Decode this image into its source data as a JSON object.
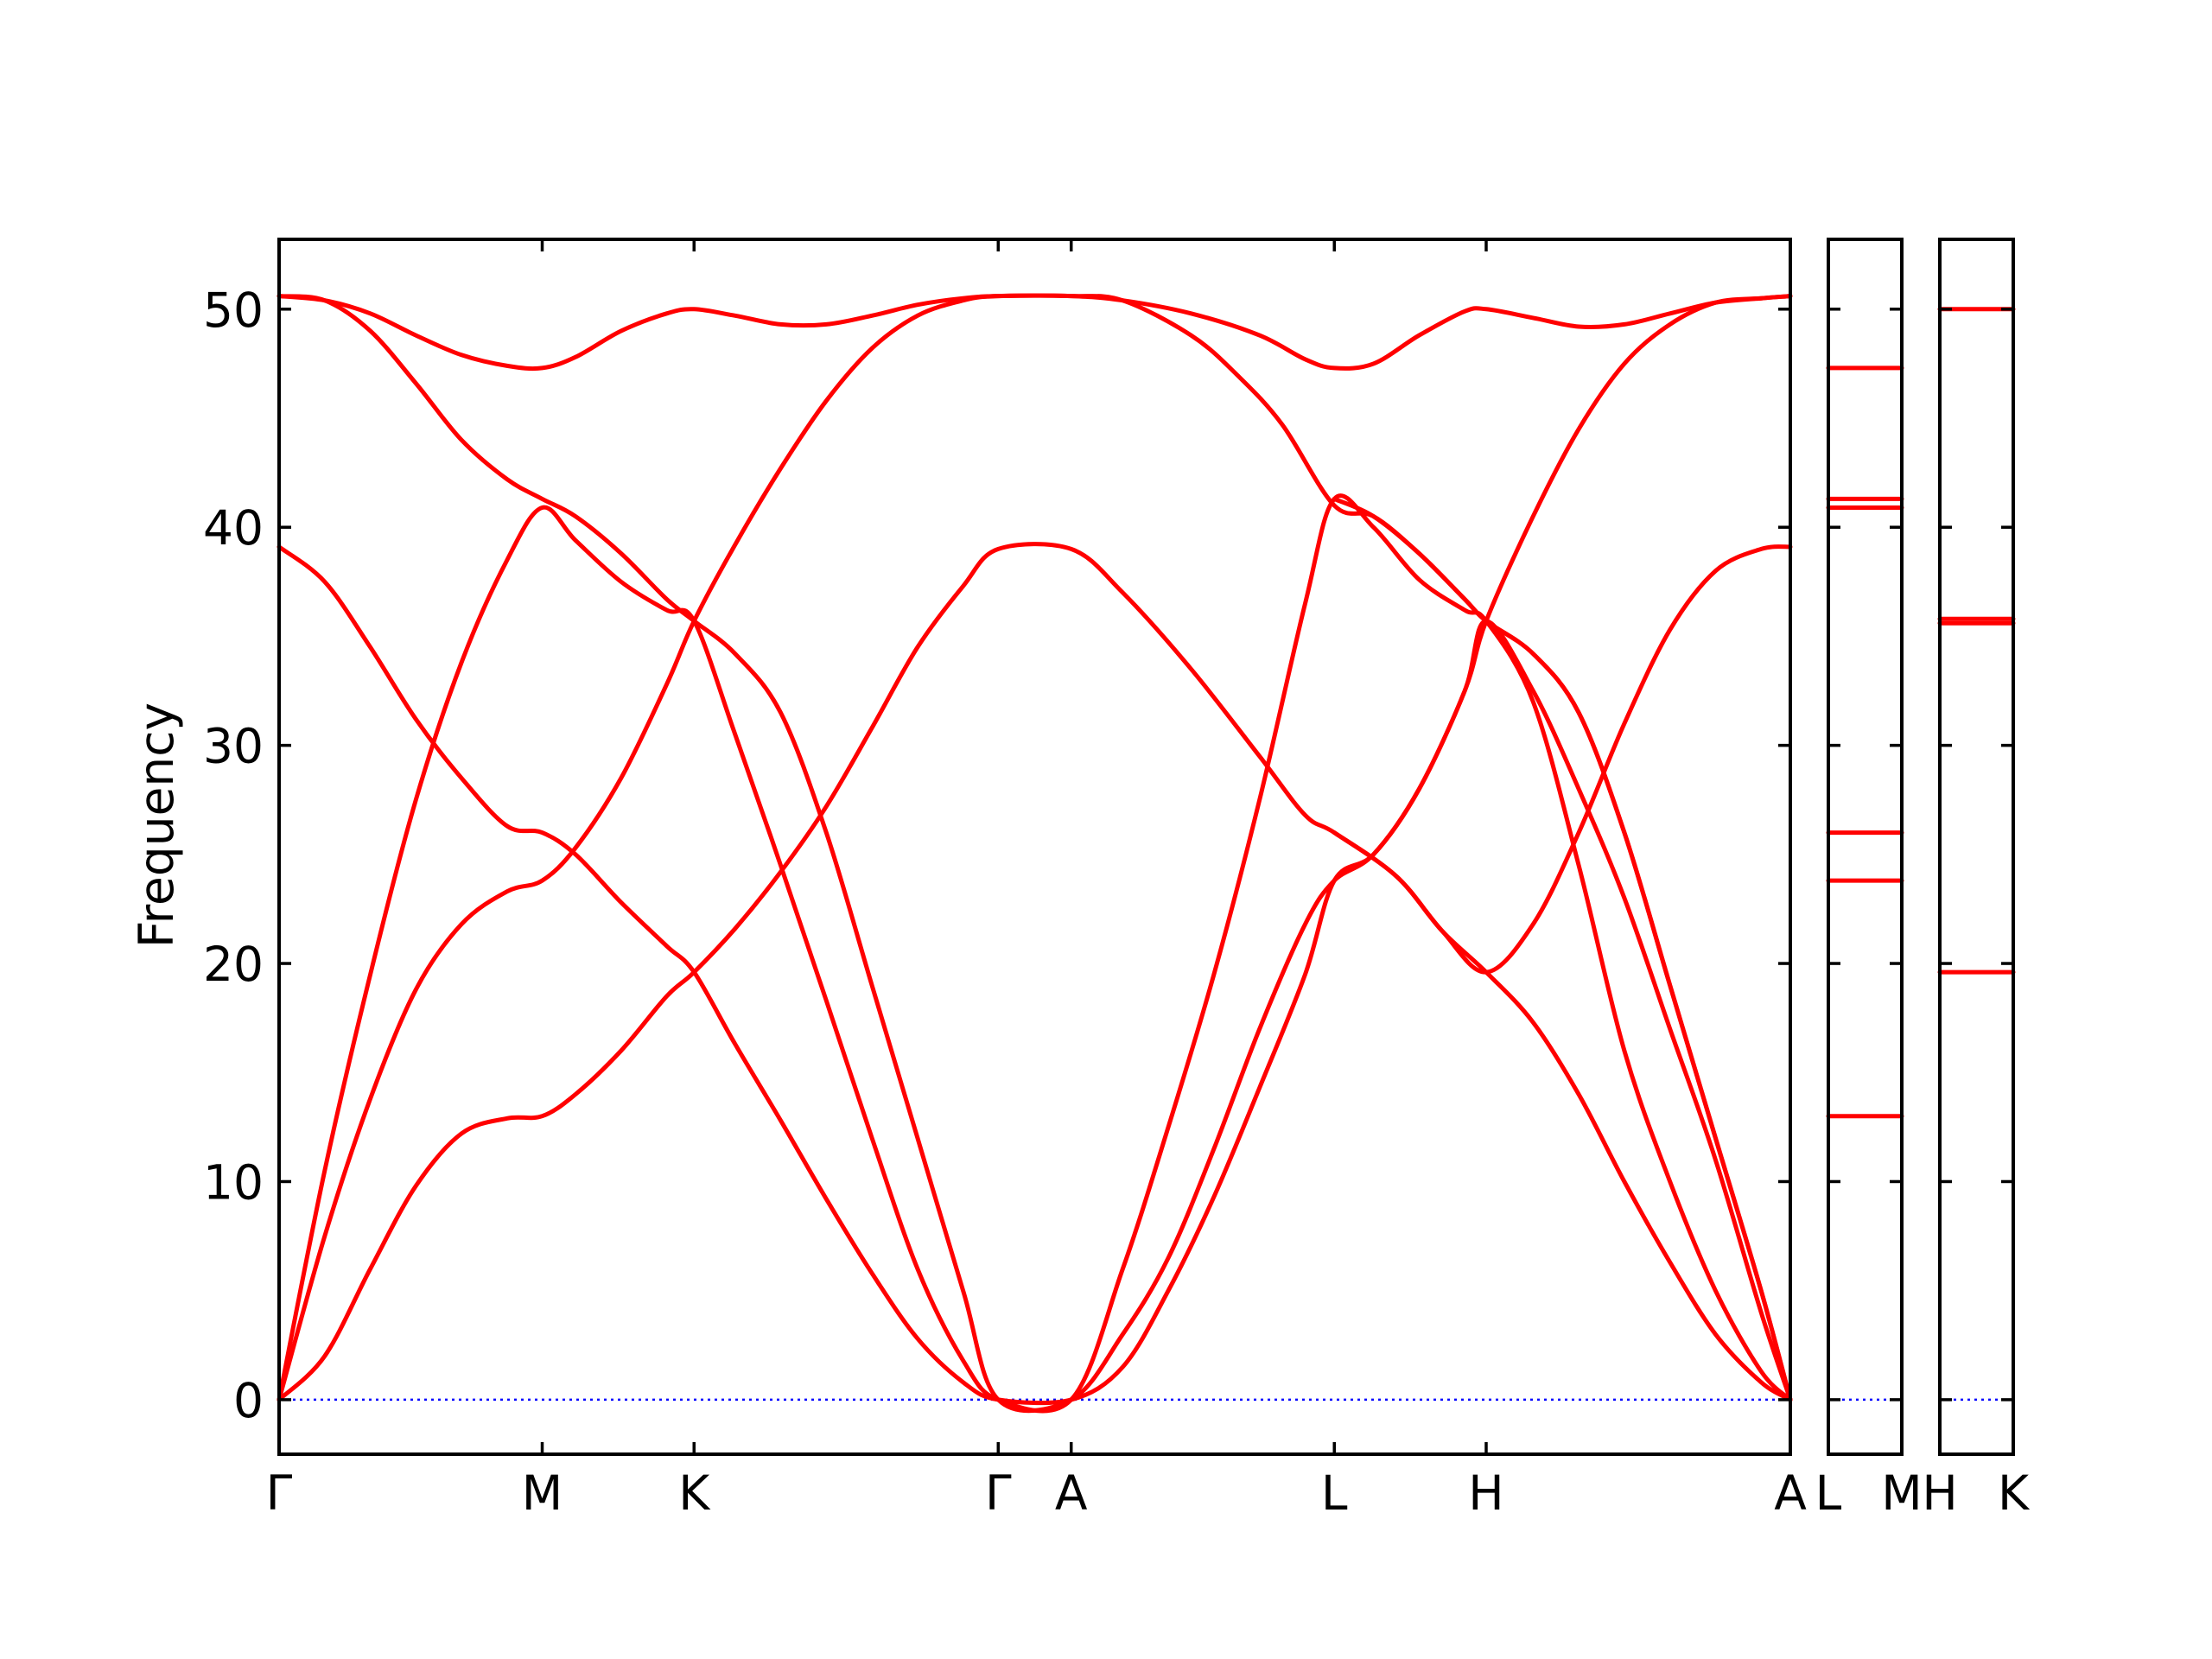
{
  "chart_data": {
    "type": "line",
    "ylabel": "Frequency",
    "ylim": [
      -2.5,
      53.2
    ],
    "yticks": [
      0,
      10,
      20,
      30,
      40,
      50
    ],
    "colors": {
      "bands": "#ff0000",
      "zero_line": "#0000ff",
      "axes": "#000000"
    },
    "main_panel": {
      "path": [
        "Γ",
        "M",
        "K",
        "Γ",
        "A",
        "L",
        "H",
        "A"
      ],
      "xticks": [
        {
          "x": 0.0,
          "label": "Γ"
        },
        {
          "x": 0.577,
          "label": "M"
        },
        {
          "x": 0.91,
          "label": "K"
        },
        {
          "x": 1.577,
          "label": "Γ"
        },
        {
          "x": 1.737,
          "label": "A"
        },
        {
          "x": 2.314,
          "label": "L"
        },
        {
          "x": 2.647,
          "label": "H"
        },
        {
          "x": 3.314,
          "label": "A"
        }
      ],
      "xlim": [
        0,
        3.314
      ],
      "bands": [
        {
          "name": "",
          "points": [
            [
              0,
              0
            ],
            [
              0.1,
              2.0
            ],
            [
              0.2,
              6.0
            ],
            [
              0.3,
              9.8
            ],
            [
              0.4,
              12.2
            ],
            [
              0.5,
              12.9
            ],
            [
              0.577,
              13.0
            ],
            [
              0.65,
              14.0
            ],
            [
              0.75,
              16.0
            ],
            [
              0.85,
              18.5
            ],
            [
              0.91,
              19.6
            ],
            [
              1.0,
              21.6
            ],
            [
              1.1,
              24.2
            ],
            [
              1.2,
              27.2
            ],
            [
              1.3,
              30.8
            ],
            [
              1.4,
              34.5
            ],
            [
              1.5,
              37.3
            ],
            [
              1.577,
              39.0
            ],
            [
              1.737,
              39.0
            ],
            [
              1.85,
              37.0
            ],
            [
              2.0,
              33.5
            ],
            [
              2.15,
              29.5
            ],
            [
              2.25,
              26.8
            ],
            [
              2.314,
              26.0
            ],
            [
              2.45,
              24.0
            ],
            [
              2.55,
              21.5
            ],
            [
              2.647,
              19.6
            ],
            [
              2.75,
              17.3
            ],
            [
              2.85,
              14.0
            ],
            [
              2.95,
              10.0
            ],
            [
              3.05,
              6.3
            ],
            [
              3.15,
              3.0
            ],
            [
              3.25,
              0.8
            ],
            [
              3.314,
              0
            ]
          ]
        },
        {
          "name": "",
          "points": [
            [
              0,
              0
            ],
            [
              0.1,
              7.5
            ],
            [
              0.2,
              13.8
            ],
            [
              0.3,
              18.8
            ],
            [
              0.4,
              21.8
            ],
            [
              0.5,
              23.3
            ],
            [
              0.577,
              23.8
            ],
            [
              0.65,
              25.3
            ],
            [
              0.75,
              28.5
            ],
            [
              0.85,
              32.8
            ],
            [
              0.91,
              35.7
            ],
            [
              1.0,
              39.2
            ],
            [
              1.1,
              42.7
            ],
            [
              1.2,
              45.8
            ],
            [
              1.3,
              48.2
            ],
            [
              1.4,
              49.7
            ],
            [
              1.5,
              50.4
            ],
            [
              1.577,
              50.6
            ],
            [
              1.737,
              50.6
            ],
            [
              1.85,
              50.4
            ],
            [
              2.0,
              49.8
            ],
            [
              2.15,
              48.8
            ],
            [
              2.25,
              47.7
            ],
            [
              2.314,
              47.3
            ],
            [
              2.4,
              47.5
            ],
            [
              2.5,
              48.8
            ],
            [
              2.6,
              49.9
            ],
            [
              2.647,
              50.0
            ],
            [
              2.75,
              49.6
            ],
            [
              2.85,
              49.2
            ],
            [
              2.95,
              49.3
            ],
            [
              3.05,
              49.8
            ],
            [
              3.15,
              50.3
            ],
            [
              3.25,
              50.5
            ],
            [
              3.314,
              50.6
            ]
          ]
        },
        {
          "name": "",
          "points": [
            [
              0,
              0
            ],
            [
              0.1,
              10.5
            ],
            [
              0.2,
              19.5
            ],
            [
              0.3,
              27.5
            ],
            [
              0.4,
              33.8
            ],
            [
              0.5,
              38.5
            ],
            [
              0.577,
              40.9
            ],
            [
              0.65,
              39.4
            ],
            [
              0.75,
              37.5
            ],
            [
              0.85,
              36.2
            ],
            [
              0.91,
              35.7
            ],
            [
              1.0,
              30.5
            ],
            [
              1.1,
              24.5
            ],
            [
              1.2,
              18.3
            ],
            [
              1.3,
              12.0
            ],
            [
              1.4,
              6.0
            ],
            [
              1.5,
              1.8
            ],
            [
              1.577,
              0
            ],
            [
              1.737,
              0
            ],
            [
              1.85,
              6.0
            ],
            [
              1.95,
              12.5
            ],
            [
              2.05,
              19.5
            ],
            [
              2.15,
              27.5
            ],
            [
              2.25,
              36.5
            ],
            [
              2.314,
              41.3
            ],
            [
              2.4,
              40.0
            ],
            [
              2.5,
              37.6
            ],
            [
              2.6,
              36.2
            ],
            [
              2.647,
              35.7
            ],
            [
              2.75,
              32.0
            ],
            [
              2.85,
              24.5
            ],
            [
              2.95,
              16.0
            ],
            [
              3.05,
              10.0
            ],
            [
              3.15,
              5.0
            ],
            [
              3.25,
              1.3
            ],
            [
              3.314,
              0
            ]
          ]
        },
        {
          "name": "",
          "points": [
            [
              0,
              39.1
            ],
            [
              0.1,
              37.5
            ],
            [
              0.2,
              34.5
            ],
            [
              0.3,
              31.2
            ],
            [
              0.4,
              28.5
            ],
            [
              0.5,
              26.3
            ],
            [
              0.577,
              26.0
            ],
            [
              0.65,
              25.0
            ],
            [
              0.75,
              22.8
            ],
            [
              0.85,
              20.8
            ],
            [
              0.91,
              19.6
            ],
            [
              1.0,
              16.3
            ],
            [
              1.1,
              12.8
            ],
            [
              1.2,
              9.2
            ],
            [
              1.3,
              5.8
            ],
            [
              1.4,
              2.8
            ],
            [
              1.5,
              0.8
            ],
            [
              1.577,
              0
            ],
            [
              1.737,
              0
            ],
            [
              1.85,
              1.5
            ],
            [
              1.95,
              5.0
            ],
            [
              2.05,
              9.3
            ],
            [
              2.15,
              14.3
            ],
            [
              2.25,
              19.5
            ],
            [
              2.314,
              23.8
            ],
            [
              2.4,
              25.0
            ],
            [
              2.5,
              28.0
            ],
            [
              2.6,
              32.5
            ],
            [
              2.647,
              35.7
            ],
            [
              2.75,
              40.5
            ],
            [
              2.85,
              44.5
            ],
            [
              2.95,
              47.5
            ],
            [
              3.05,
              49.3
            ],
            [
              3.15,
              50.3
            ],
            [
              3.25,
              50.5
            ],
            [
              3.314,
              50.6
            ]
          ]
        },
        {
          "name": "",
          "points": [
            [
              0,
              50.6
            ],
            [
              0.1,
              50.4
            ],
            [
              0.2,
              49.0
            ],
            [
              0.3,
              46.6
            ],
            [
              0.4,
              44.0
            ],
            [
              0.5,
              42.2
            ],
            [
              0.577,
              41.3
            ],
            [
              0.65,
              40.5
            ],
            [
              0.75,
              38.8
            ],
            [
              0.85,
              36.7
            ],
            [
              0.91,
              35.7
            ],
            [
              1.0,
              34.2
            ],
            [
              1.1,
              31.5
            ],
            [
              1.2,
              26.0
            ],
            [
              1.3,
              19.0
            ],
            [
              1.4,
              12.0
            ],
            [
              1.5,
              5.0
            ],
            [
              1.577,
              0
            ],
            [
              1.737,
              0
            ],
            [
              1.85,
              3.0
            ],
            [
              1.95,
              6.5
            ],
            [
              2.05,
              11.5
            ],
            [
              2.15,
              17.0
            ],
            [
              2.25,
              21.8
            ],
            [
              2.314,
              23.8
            ],
            [
              2.4,
              25.0
            ],
            [
              2.5,
              28.0
            ],
            [
              2.6,
              32.5
            ],
            [
              2.647,
              35.7
            ],
            [
              2.75,
              32.5
            ],
            [
              2.85,
              28.0
            ],
            [
              2.95,
              23.0
            ],
            [
              3.05,
              17.0
            ],
            [
              3.15,
              11.0
            ],
            [
              3.25,
              4.0
            ],
            [
              3.314,
              0
            ]
          ]
        },
        {
          "name": "",
          "points": [
            [
              0,
              50.6
            ],
            [
              0.1,
              50.4
            ],
            [
              0.2,
              49.8
            ],
            [
              0.3,
              48.8
            ],
            [
              0.4,
              47.9
            ],
            [
              0.5,
              47.4
            ],
            [
              0.577,
              47.3
            ],
            [
              0.65,
              47.8
            ],
            [
              0.75,
              49.0
            ],
            [
              0.85,
              49.8
            ],
            [
              0.91,
              50.0
            ],
            [
              1.0,
              49.7
            ],
            [
              1.1,
              49.3
            ],
            [
              1.2,
              49.3
            ],
            [
              1.3,
              49.7
            ],
            [
              1.4,
              50.2
            ],
            [
              1.5,
              50.5
            ],
            [
              1.577,
              50.6
            ],
            [
              1.737,
              50.6
            ],
            [
              1.85,
              50.4
            ],
            [
              2.0,
              48.8
            ],
            [
              2.1,
              47.0
            ],
            [
              2.2,
              44.7
            ],
            [
              2.314,
              41.0
            ],
            [
              2.4,
              40.5
            ],
            [
              2.5,
              38.8
            ],
            [
              2.6,
              36.7
            ],
            [
              2.647,
              35.7
            ],
            [
              2.75,
              34.2
            ],
            [
              2.85,
              31.5
            ],
            [
              2.95,
              26.0
            ],
            [
              3.05,
              19.0
            ],
            [
              3.15,
              12.0
            ],
            [
              3.25,
              5.0
            ],
            [
              3.314,
              0
            ]
          ]
        },
        {
          "name": "",
          "points": [
            [
              2.314,
              41.3
            ],
            [
              2.4,
              40.5
            ],
            [
              2.5,
              38.8
            ],
            [
              2.6,
              36.7
            ],
            [
              2.647,
              35.7
            ],
            [
              2.75,
              34.2
            ],
            [
              2.85,
              31.5
            ],
            [
              2.95,
              26.0
            ],
            [
              3.05,
              19.0
            ],
            [
              3.15,
              12.0
            ],
            [
              3.25,
              5.0
            ],
            [
              3.314,
              0
            ]
          ]
        },
        {
          "name": "",
          "points": [
            [
              2.314,
              26.0
            ],
            [
              2.45,
              24.0
            ],
            [
              2.55,
              21.5
            ],
            [
              2.647,
              19.6
            ],
            [
              2.75,
              21.8
            ],
            [
              2.85,
              26.0
            ],
            [
              2.95,
              31.0
            ],
            [
              3.05,
              35.3
            ],
            [
              3.15,
              38.0
            ],
            [
              3.25,
              39.0
            ],
            [
              3.314,
              39.1
            ]
          ]
        }
      ]
    },
    "panel_LM": {
      "xticks": [
        {
          "label": "L"
        },
        {
          "label": "M"
        }
      ],
      "levels": [
        0,
        13.0,
        23.8,
        26.0,
        40.9,
        41.3,
        47.3
      ]
    },
    "panel_HK": {
      "xticks": [
        {
          "label": "H"
        },
        {
          "label": "K"
        }
      ],
      "levels": [
        0,
        19.6,
        35.6,
        35.8,
        50.0
      ]
    }
  }
}
